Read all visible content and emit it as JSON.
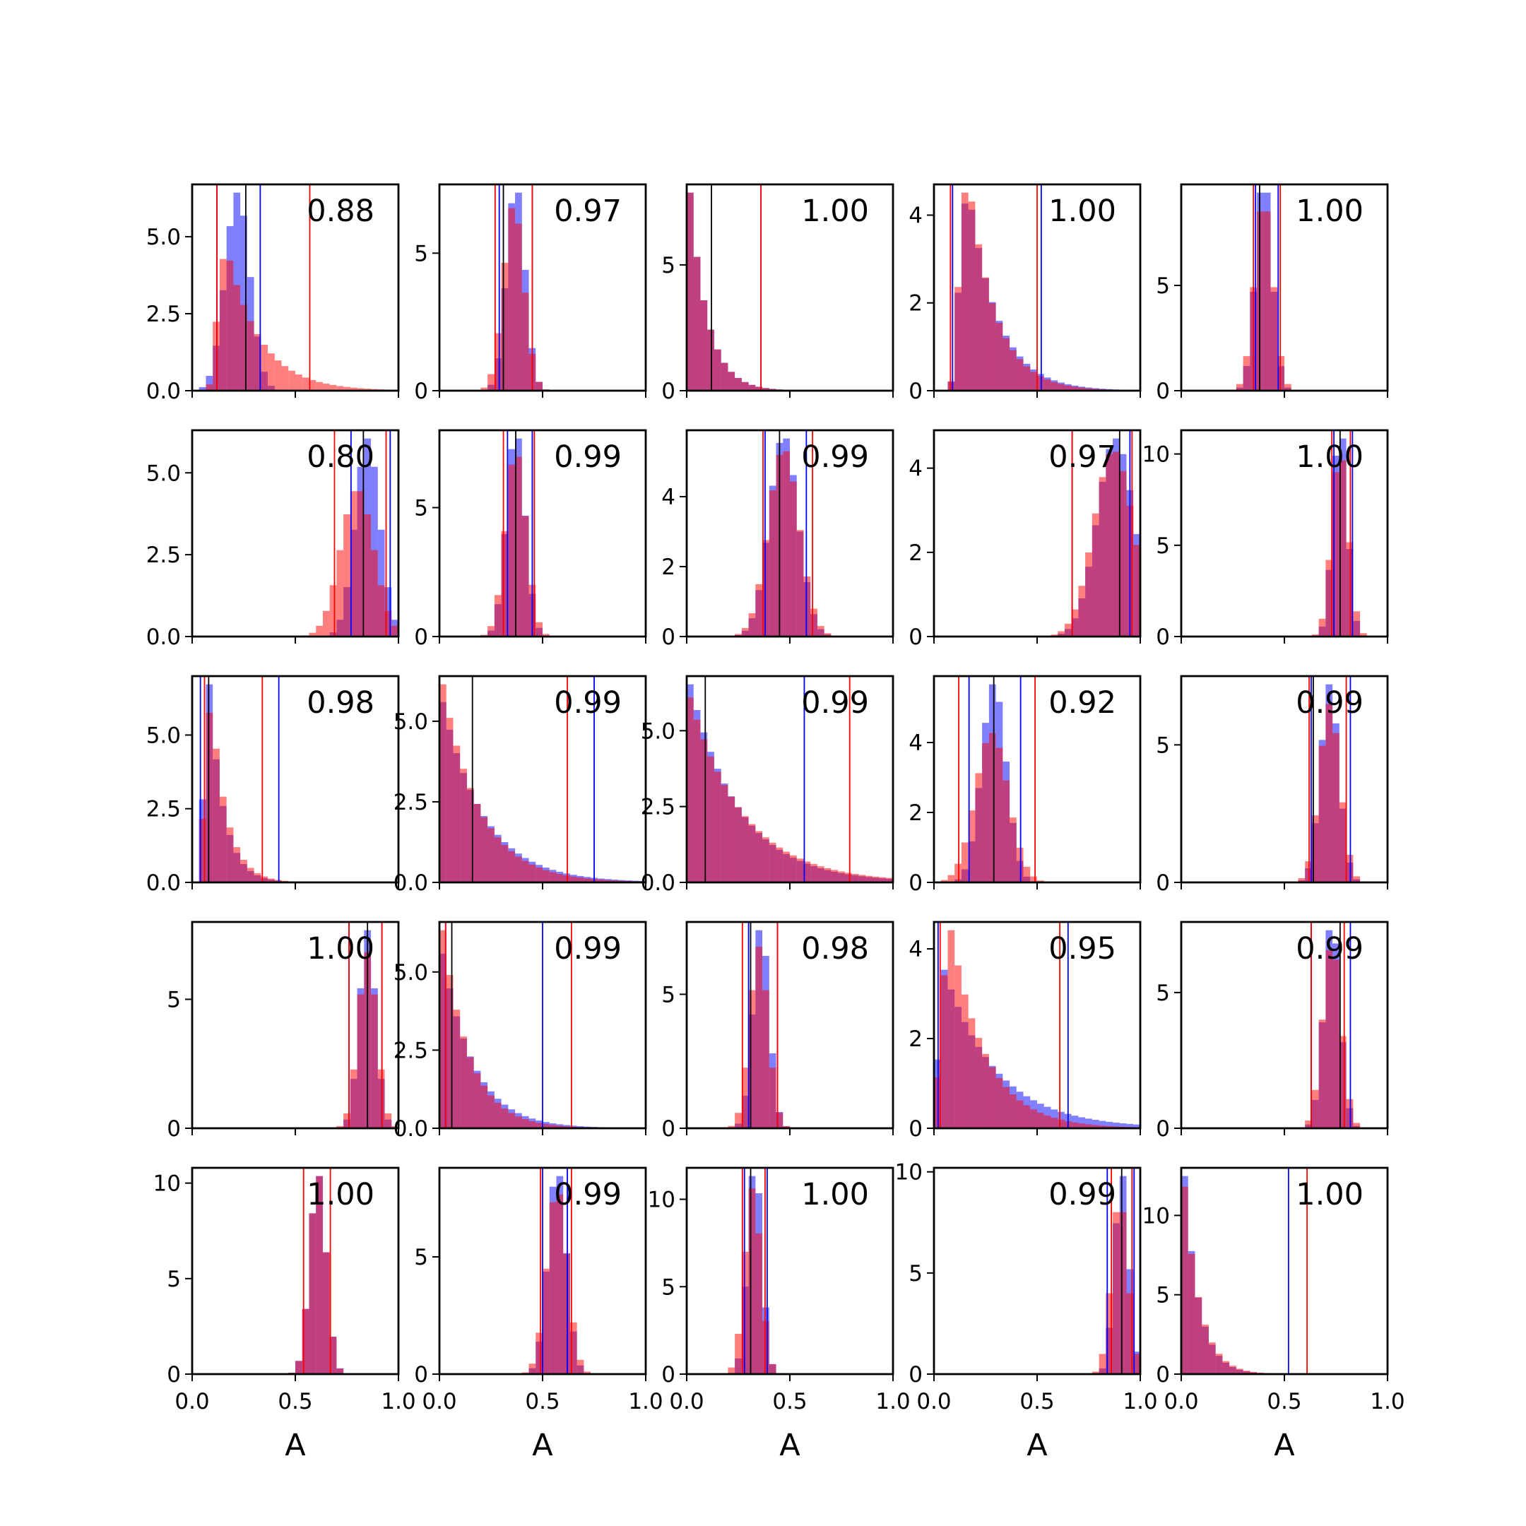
{
  "chart_data": {
    "type": "histogram-grid",
    "rows": 5,
    "cols": 5,
    "xlabel": "A",
    "xlim": [
      0,
      1
    ],
    "x_ticks": [
      "0.0",
      "0.5",
      "1.0"
    ],
    "bins": 30,
    "series_colors": {
      "blue": "#0000ff",
      "red": "#ff0000",
      "black": "#000000"
    },
    "panels": [
      {
        "label": "0.88",
        "ylim": [
          0,
          6.7
        ],
        "yticks": [
          0,
          2.5,
          5.0
        ],
        "ytick_labels": [
          "0.0",
          "2.5",
          "5.0"
        ],
        "blue": {
          "shape": "normal",
          "mean": 0.22,
          "sd": 0.06
        },
        "red": {
          "shape": "skew",
          "mode": 0.16,
          "rate": 0.16,
          "start": 0.08
        },
        "vlines": {
          "blue": [
            0.12,
            0.33
          ],
          "red": [
            0.12,
            0.57
          ],
          "black": [
            0.26
          ]
        }
      },
      {
        "label": "0.97",
        "ylim": [
          0,
          7.5
        ],
        "yticks": [
          0,
          5
        ],
        "ytick_labels": [
          "0",
          "5"
        ],
        "blue": {
          "shape": "normal",
          "mean": 0.37,
          "sd": 0.045
        },
        "red": {
          "shape": "normal",
          "mean": 0.36,
          "sd": 0.05
        },
        "vlines": {
          "blue": [
            0.29,
            0.45
          ],
          "red": [
            0.27,
            0.45
          ],
          "black": [
            0.31
          ]
        }
      },
      {
        "label": "1.00",
        "ylim": [
          0,
          8.2
        ],
        "yticks": [
          0,
          5
        ],
        "ytick_labels": [
          "0",
          "5"
        ],
        "blue": {
          "shape": "exp",
          "rate": 0.085,
          "start": 0.0
        },
        "red": {
          "shape": "exp",
          "rate": 0.085,
          "start": 0.0
        },
        "vlines": {
          "blue": [
            0.36
          ],
          "red": [
            0.36
          ],
          "black": [
            0.12
          ]
        }
      },
      {
        "label": "1.00",
        "ylim": [
          0,
          4.7
        ],
        "yticks": [
          0,
          2,
          4
        ],
        "ytick_labels": [
          "0",
          "2",
          "4"
        ],
        "blue": {
          "shape": "skew",
          "mode": 0.16,
          "rate": 0.14,
          "start": 0.08
        },
        "red": {
          "shape": "skew",
          "mode": 0.16,
          "rate": 0.13,
          "start": 0.08
        },
        "vlines": {
          "blue": [
            0.09,
            0.52
          ],
          "red": [
            0.08,
            0.5
          ],
          "black": []
        }
      },
      {
        "label": "1.00",
        "ylim": [
          0,
          9.8
        ],
        "yticks": [
          0,
          5
        ],
        "ytick_labels": [
          "0",
          "5"
        ],
        "blue": {
          "shape": "normal",
          "mean": 0.4,
          "sd": 0.04
        },
        "red": {
          "shape": "normal",
          "mean": 0.4,
          "sd": 0.045
        },
        "vlines": {
          "blue": [
            0.36,
            0.47
          ],
          "red": [
            0.35,
            0.48
          ],
          "black": [
            0.38
          ]
        }
      },
      {
        "label": "0.80",
        "ylim": [
          0,
          6.3
        ],
        "yticks": [
          0,
          2.5,
          5.0
        ],
        "ytick_labels": [
          "0.0",
          "2.5",
          "5.0"
        ],
        "blue": {
          "shape": "normal",
          "mean": 0.85,
          "sd": 0.06
        },
        "red": {
          "shape": "normal",
          "mean": 0.8,
          "sd": 0.08
        },
        "vlines": {
          "blue": [
            0.77,
            0.96
          ],
          "red": [
            0.69,
            0.94
          ],
          "black": [
            0.83
          ]
        }
      },
      {
        "label": "0.99",
        "ylim": [
          0,
          8.0
        ],
        "yticks": [
          0,
          5
        ],
        "ytick_labels": [
          "0",
          "5"
        ],
        "blue": {
          "shape": "normal",
          "mean": 0.37,
          "sd": 0.045
        },
        "red": {
          "shape": "normal",
          "mean": 0.37,
          "sd": 0.05
        },
        "vlines": {
          "blue": [
            0.33,
            0.45
          ],
          "red": [
            0.31,
            0.46
          ],
          "black": [
            0.37
          ]
        }
      },
      {
        "label": "0.99",
        "ylim": [
          0,
          5.9
        ],
        "yticks": [
          0,
          2,
          4
        ],
        "ytick_labels": [
          "0",
          "2",
          "4"
        ],
        "blue": {
          "shape": "normal",
          "mean": 0.47,
          "sd": 0.07
        },
        "red": {
          "shape": "normal",
          "mean": 0.47,
          "sd": 0.075
        },
        "vlines": {
          "blue": [
            0.38,
            0.58
          ],
          "red": [
            0.37,
            0.61
          ],
          "black": [
            0.45
          ]
        }
      },
      {
        "label": "0.97",
        "ylim": [
          0,
          4.9
        ],
        "yticks": [
          0,
          2,
          4
        ],
        "ytick_labels": [
          "0",
          "2",
          "4"
        ],
        "blue": {
          "shape": "normal",
          "mean": 0.88,
          "sd": 0.09
        },
        "red": {
          "shape": "normal",
          "mean": 0.87,
          "sd": 0.095
        },
        "vlines": {
          "blue": [
            0.67,
            0.95
          ],
          "red": [
            0.67,
            0.96
          ],
          "black": [
            0.9
          ]
        }
      },
      {
        "label": "1.00",
        "ylim": [
          0,
          11.3
        ],
        "yticks": [
          0,
          5,
          10
        ],
        "ytick_labels": [
          "0",
          "5",
          "10"
        ],
        "blue": {
          "shape": "normal",
          "mean": 0.77,
          "sd": 0.035
        },
        "red": {
          "shape": "normal",
          "mean": 0.77,
          "sd": 0.04
        },
        "vlines": {
          "blue": [
            0.74,
            0.83
          ],
          "red": [
            0.73,
            0.82
          ],
          "black": [
            0.77
          ]
        }
      },
      {
        "label": "0.98",
        "ylim": [
          0,
          7.0
        ],
        "yticks": [
          0,
          2.5,
          5.0
        ],
        "ytick_labels": [
          "0.0",
          "2.5",
          "5.0"
        ],
        "blue": {
          "shape": "skew",
          "mode": 0.08,
          "rate": 0.07,
          "start": 0.03
        },
        "red": {
          "shape": "skew",
          "mode": 0.09,
          "rate": 0.075,
          "start": 0.03
        },
        "vlines": {
          "blue": [
            0.04,
            0.42
          ],
          "red": [
            0.06,
            0.34
          ],
          "black": [
            0.08
          ]
        }
      },
      {
        "label": "0.99",
        "ylim": [
          0,
          6.4
        ],
        "yticks": [
          0,
          2.5,
          5.0
        ],
        "ytick_labels": [
          "0.0",
          "2.5",
          "5.0"
        ],
        "blue": {
          "shape": "exp",
          "rate": 0.2,
          "start": 0.0
        },
        "red": {
          "shape": "exp",
          "rate": 0.18,
          "start": 0.0
        },
        "vlines": {
          "blue": [
            0.0,
            0.75
          ],
          "red": [
            0.0,
            0.62
          ],
          "black": [
            0.16
          ]
        }
      },
      {
        "label": "0.99",
        "ylim": [
          0,
          6.8
        ],
        "yticks": [
          0,
          2.5,
          5.0
        ],
        "ytick_labels": [
          "0.0",
          "2.5",
          "5.0"
        ],
        "blue": {
          "shape": "exp",
          "rate": 0.24,
          "start": 0.0
        },
        "red": {
          "shape": "exp",
          "rate": 0.26,
          "start": 0.0
        },
        "vlines": {
          "blue": [
            0.0,
            0.57
          ],
          "red": [
            0.0,
            0.79
          ],
          "black": [
            0.09
          ]
        }
      },
      {
        "label": "0.92",
        "ylim": [
          0,
          5.9
        ],
        "yticks": [
          0,
          2,
          4
        ],
        "ytick_labels": [
          "0",
          "2",
          "4"
        ],
        "blue": {
          "shape": "normal",
          "mean": 0.29,
          "sd": 0.06
        },
        "red": {
          "shape": "normal",
          "mean": 0.28,
          "sd": 0.08
        },
        "vlines": {
          "blue": [
            0.17,
            0.42
          ],
          "red": [
            0.12,
            0.49
          ],
          "black": [
            0.29
          ]
        }
      },
      {
        "label": "0.99",
        "ylim": [
          0,
          7.5
        ],
        "yticks": [
          0,
          5
        ],
        "ytick_labels": [
          "0",
          "5"
        ],
        "blue": {
          "shape": "normal",
          "mean": 0.72,
          "sd": 0.045
        },
        "red": {
          "shape": "normal",
          "mean": 0.72,
          "sd": 0.05
        },
        "vlines": {
          "blue": [
            0.63,
            0.82
          ],
          "red": [
            0.62,
            0.8
          ],
          "black": [
            0.64
          ]
        }
      },
      {
        "label": "1.00",
        "ylim": [
          0,
          8.0
        ],
        "yticks": [
          0,
          5
        ],
        "ytick_labels": [
          "0",
          "5"
        ],
        "blue": {
          "shape": "normal",
          "mean": 0.85,
          "sd": 0.04
        },
        "red": {
          "shape": "normal",
          "mean": 0.85,
          "sd": 0.045
        },
        "vlines": {
          "blue": [
            0.76,
            0.92
          ],
          "red": [
            0.76,
            0.92
          ],
          "black": [
            0.85
          ]
        }
      },
      {
        "label": "0.99",
        "ylim": [
          0,
          6.6
        ],
        "yticks": [
          0,
          2.5,
          5.0
        ],
        "ytick_labels": [
          "0.0",
          "2.5",
          "5.0"
        ],
        "blue": {
          "shape": "exp",
          "rate": 0.15,
          "start": 0.0
        },
        "red": {
          "shape": "exp",
          "rate": 0.13,
          "start": 0.0
        },
        "vlines": {
          "blue": [
            0.03,
            0.5
          ],
          "red": [
            0.03,
            0.64
          ],
          "black": [
            0.06
          ]
        }
      },
      {
        "label": "0.98",
        "ylim": [
          0,
          7.7
        ],
        "yticks": [
          0,
          5
        ],
        "ytick_labels": [
          "0",
          "5"
        ],
        "blue": {
          "shape": "normal",
          "mean": 0.36,
          "sd": 0.04
        },
        "red": {
          "shape": "normal",
          "mean": 0.35,
          "sd": 0.045
        },
        "vlines": {
          "blue": [
            0.3,
            0.44
          ],
          "red": [
            0.27,
            0.44
          ],
          "black": [
            0.31
          ]
        }
      },
      {
        "label": "0.95",
        "ylim": [
          0,
          4.6
        ],
        "yticks": [
          0,
          2,
          4
        ],
        "ytick_labels": [
          "0",
          "2",
          "4"
        ],
        "blue": {
          "shape": "skew",
          "mode": 0.04,
          "rate": 0.25,
          "start": 0.0
        },
        "red": {
          "shape": "skew",
          "mode": 0.07,
          "rate": 0.17,
          "start": 0.0
        },
        "vlines": {
          "blue": [
            0.02,
            0.65
          ],
          "red": [
            0.03,
            0.61
          ],
          "black": []
        }
      },
      {
        "label": "0.99",
        "ylim": [
          0,
          7.6
        ],
        "yticks": [
          0,
          5
        ],
        "ytick_labels": [
          "0",
          "5"
        ],
        "blue": {
          "shape": "normal",
          "mean": 0.73,
          "sd": 0.04
        },
        "red": {
          "shape": "normal",
          "mean": 0.73,
          "sd": 0.045
        },
        "vlines": {
          "blue": [
            0.63,
            0.82
          ],
          "red": [
            0.63,
            0.79
          ],
          "black": [
            0.77
          ]
        }
      },
      {
        "label": "1.00",
        "ylim": [
          0,
          10.8
        ],
        "yticks": [
          0,
          5,
          10
        ],
        "ytick_labels": [
          "0",
          "5",
          "10"
        ],
        "blue": {
          "shape": "normal",
          "mean": 0.61,
          "sd": 0.04
        },
        "red": {
          "shape": "normal",
          "mean": 0.61,
          "sd": 0.04
        },
        "vlines": {
          "blue": [],
          "red": [
            0.54,
            0.67
          ],
          "black": []
        }
      },
      {
        "label": "0.99",
        "ylim": [
          0,
          8.8
        ],
        "yticks": [
          0,
          5
        ],
        "ytick_labels": [
          "0",
          "5"
        ],
        "blue": {
          "shape": "normal",
          "mean": 0.57,
          "sd": 0.045
        },
        "red": {
          "shape": "normal",
          "mean": 0.57,
          "sd": 0.05
        },
        "vlines": {
          "blue": [
            0.5,
            0.62
          ],
          "red": [
            0.49,
            0.64
          ],
          "black": []
        }
      },
      {
        "label": "1.00",
        "ylim": [
          0,
          11.8
        ],
        "yticks": [
          0,
          5,
          10
        ],
        "ytick_labels": [
          "0",
          "5",
          "10"
        ],
        "blue": {
          "shape": "normal",
          "mean": 0.33,
          "sd": 0.035
        },
        "red": {
          "shape": "normal",
          "mean": 0.32,
          "sd": 0.04
        },
        "vlines": {
          "blue": [
            0.28,
            0.39
          ],
          "red": [
            0.27,
            0.38
          ],
          "black": [
            0.31
          ]
        }
      },
      {
        "label": "0.99",
        "ylim": [
          0,
          10.2
        ],
        "yticks": [
          0,
          5,
          10
        ],
        "ytick_labels": [
          "0",
          "5",
          "10"
        ],
        "blue": {
          "shape": "normal",
          "mean": 0.91,
          "sd": 0.035
        },
        "red": {
          "shape": "normal",
          "mean": 0.9,
          "sd": 0.04
        },
        "vlines": {
          "blue": [
            0.84,
            0.97
          ],
          "red": [
            0.86,
            0.96
          ],
          "black": [
            0.91
          ]
        }
      },
      {
        "label": "1.00",
        "ylim": [
          0,
          13.0
        ],
        "yticks": [
          0,
          5,
          10
        ],
        "ytick_labels": [
          "0",
          "5",
          "10"
        ],
        "blue": {
          "shape": "exp",
          "rate": 0.07,
          "start": 0.0
        },
        "red": {
          "shape": "exp",
          "rate": 0.075,
          "start": 0.0
        },
        "vlines": {
          "blue": [
            0.52
          ],
          "red": [
            0.61
          ],
          "black": []
        }
      }
    ]
  }
}
